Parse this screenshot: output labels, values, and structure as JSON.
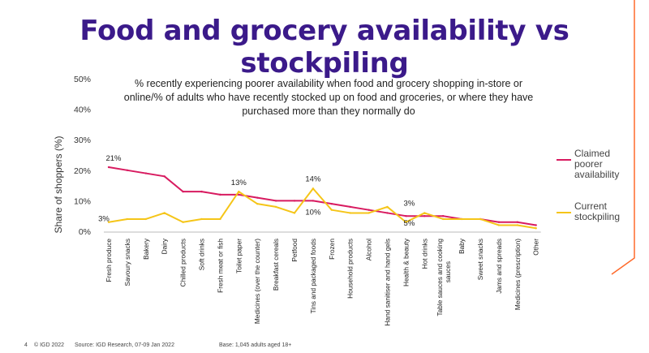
{
  "slide": {
    "title": "Food and grocery availability vs stockpiling",
    "page_number": "4",
    "copyright": "© IGD 2022",
    "source": "Source: IGD Research, 07-09 Jan 2022",
    "base": "Base: 1,045 adults aged 18+"
  },
  "colors": {
    "title": "#3b1a8a",
    "claimed": "#d81b60",
    "stockpiling": "#f5c518",
    "accent_line": "#ff6a2b"
  },
  "chart_data": {
    "type": "line",
    "title": "% recently experiencing poorer availability when food and grocery shopping in-store or online/% of adults who have recently stocked up on food and groceries, or where they have purchased more than they normally do",
    "ylabel": "Share of shoppers (%)",
    "xlabel": "",
    "ylim": [
      0,
      50
    ],
    "yticks": [
      "0%",
      "10%",
      "20%",
      "30%",
      "40%",
      "50%"
    ],
    "grid": false,
    "legend_position": "right",
    "categories": [
      "Fresh produce",
      "Savoury snacks",
      "Bakery",
      "Dairy",
      "Chilled products",
      "Soft drinks",
      "Fresh meat or fish",
      "Toilet paper",
      "Medicines (over the counter)",
      "Breakfast cereals",
      "Petfood",
      "Tins and packaged foods",
      "Frozen",
      "Household products",
      "Alcohol",
      "Hand sanitiser and hand gels",
      "Health & beauty",
      "Hot drinks",
      "Table sauces and cooking sauces",
      "Baby",
      "Sweet snacks",
      "Jams and spreads",
      "Medicines (prescription)",
      "Other"
    ],
    "series": [
      {
        "name": "Claimed poorer availability",
        "values": [
          21,
          20,
          19,
          18,
          13,
          13,
          12,
          12,
          11,
          10,
          10,
          10,
          9,
          8,
          7,
          6,
          5,
          5,
          5,
          4,
          4,
          3,
          3,
          2
        ],
        "labels": [
          {
            "index": 0,
            "text": "21%"
          },
          {
            "index": 11,
            "text": "10%"
          },
          {
            "index": 16,
            "text": "5%"
          }
        ]
      },
      {
        "name": "Current stockpiling",
        "values": [
          3,
          4,
          4,
          6,
          3,
          4,
          4,
          13,
          9,
          8,
          6,
          14,
          7,
          6,
          6,
          8,
          3,
          6,
          4,
          4,
          4,
          2,
          2,
          1
        ],
        "labels": [
          {
            "index": 0,
            "text": "3%"
          },
          {
            "index": 7,
            "text": "13%"
          },
          {
            "index": 11,
            "text": "14%"
          },
          {
            "index": 16,
            "text": "3%"
          }
        ]
      }
    ]
  }
}
